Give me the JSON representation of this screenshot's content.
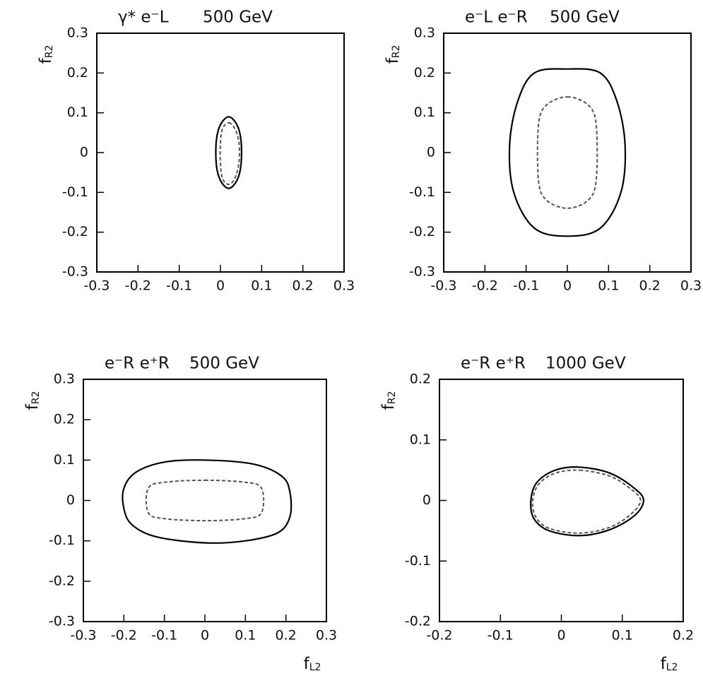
{
  "chart_data": [
    {
      "type": "contour",
      "title": "γ* e⁻L",
      "energy": "500 GeV",
      "ylabel": "f",
      "ylabel_sub": "R2",
      "xlim": [
        -0.3,
        0.3
      ],
      "ylim": [
        -0.3,
        0.3
      ],
      "xticks": [
        -0.3,
        -0.2,
        -0.1,
        0,
        0.1,
        0.2,
        0.3
      ],
      "yticks": [
        -0.3,
        -0.2,
        -0.1,
        0,
        0.1,
        0.2,
        0.3
      ],
      "series": [
        {
          "color": "#000000",
          "dashed": false,
          "x": [
            0.02,
            0.04,
            0.05,
            0.05,
            0.04,
            0.02,
            0.0,
            -0.01,
            -0.01,
            0.0
          ],
          "y": [
            0.09,
            0.07,
            0.03,
            -0.03,
            -0.07,
            -0.09,
            -0.07,
            -0.03,
            0.03,
            0.07
          ]
        },
        {
          "color": "#555555",
          "dashed": true,
          "x": [
            0.02,
            0.035,
            0.045,
            0.045,
            0.035,
            0.02,
            0.005,
            0.0,
            0.0,
            0.005
          ],
          "y": [
            0.075,
            0.06,
            0.025,
            -0.025,
            -0.065,
            -0.08,
            -0.065,
            -0.025,
            0.025,
            0.06
          ]
        }
      ]
    },
    {
      "type": "contour",
      "title": "e⁻L e⁻R",
      "energy": "500 GeV",
      "ylabel": "f",
      "ylabel_sub": "R2",
      "xlim": [
        -0.3,
        0.3
      ],
      "ylim": [
        -0.3,
        0.3
      ],
      "xticks": [
        -0.3,
        -0.2,
        -0.1,
        0,
        0.1,
        0.2,
        0.3
      ],
      "yticks": [
        -0.3,
        -0.2,
        -0.1,
        0,
        0.1,
        0.2,
        0.3
      ],
      "series": [
        {
          "color": "#000000",
          "dashed": false,
          "x": [
            0,
            0.08,
            0.12,
            0.14,
            0.13,
            0.08,
            0,
            -0.08,
            -0.13,
            -0.14,
            -0.12,
            -0.08
          ],
          "y": [
            0.21,
            0.2,
            0.13,
            0.02,
            -0.1,
            -0.19,
            -0.21,
            -0.19,
            -0.1,
            0.02,
            0.13,
            0.2
          ]
        },
        {
          "color": "#555555",
          "dashed": true,
          "x": [
            0,
            0.05,
            0.07,
            0.07,
            0.05,
            0,
            -0.05,
            -0.07,
            -0.07,
            -0.05
          ],
          "y": [
            0.14,
            0.12,
            0.07,
            -0.07,
            -0.12,
            -0.14,
            -0.12,
            -0.07,
            0.07,
            0.12
          ]
        }
      ]
    },
    {
      "type": "contour",
      "title": "e⁻R e⁺R",
      "energy": "500 GeV",
      "ylabel": "f",
      "ylabel_sub": "R2",
      "xlabel": "f",
      "xlabel_sub": "L2",
      "xlim": [
        -0.3,
        0.3
      ],
      "ylim": [
        -0.3,
        0.3
      ],
      "xticks": [
        -0.3,
        -0.2,
        -0.1,
        0,
        0.1,
        0.2,
        0.3
      ],
      "yticks": [
        -0.3,
        -0.2,
        -0.1,
        0,
        0.1,
        0.2,
        0.3
      ],
      "series": [
        {
          "color": "#000000",
          "dashed": false,
          "x": [
            0,
            0.12,
            0.19,
            0.21,
            0.21,
            0.18,
            0.1,
            0,
            -0.12,
            -0.18,
            -0.2,
            -0.2,
            -0.17,
            -0.1
          ],
          "y": [
            0.1,
            0.09,
            0.06,
            0.02,
            -0.04,
            -0.08,
            -0.1,
            -0.105,
            -0.09,
            -0.06,
            -0.02,
            0.03,
            0.07,
            0.095
          ]
        },
        {
          "color": "#555555",
          "dashed": true,
          "x": [
            0,
            0.1,
            0.14,
            0.14,
            0.1,
            0,
            -0.1,
            -0.14,
            -0.14,
            -0.1
          ],
          "y": [
            0.05,
            0.045,
            0.03,
            -0.03,
            -0.045,
            -0.05,
            -0.045,
            -0.03,
            0.03,
            0.045
          ]
        }
      ]
    },
    {
      "type": "contour",
      "title": "e⁻R e⁺R",
      "energy": "1000 GeV",
      "ylabel": "f",
      "ylabel_sub": "R2",
      "xlabel": "f",
      "xlabel_sub": "L2",
      "xlim": [
        -0.2,
        0.2
      ],
      "ylim": [
        -0.2,
        0.2
      ],
      "xticks": [
        -0.2,
        -0.1,
        0,
        0.1,
        0.2
      ],
      "yticks": [
        -0.2,
        -0.1,
        0,
        0.1,
        0.2
      ],
      "series": [
        {
          "color": "#000000",
          "dashed": false,
          "x": [
            0.03,
            0.08,
            0.12,
            0.135,
            0.12,
            0.08,
            0.03,
            -0.02,
            -0.045,
            -0.05,
            -0.04,
            -0.01
          ],
          "y": [
            0.055,
            0.045,
            0.02,
            0.0,
            -0.025,
            -0.048,
            -0.058,
            -0.05,
            -0.03,
            0.0,
            0.03,
            0.05
          ]
        },
        {
          "color": "#555555",
          "dashed": true,
          "x": [
            0.03,
            0.08,
            0.115,
            0.13,
            0.115,
            0.08,
            0.03,
            -0.02,
            -0.042,
            -0.047,
            -0.037,
            -0.01
          ],
          "y": [
            0.05,
            0.04,
            0.018,
            0.0,
            -0.022,
            -0.044,
            -0.054,
            -0.046,
            -0.027,
            0.0,
            0.027,
            0.045
          ]
        }
      ]
    }
  ]
}
